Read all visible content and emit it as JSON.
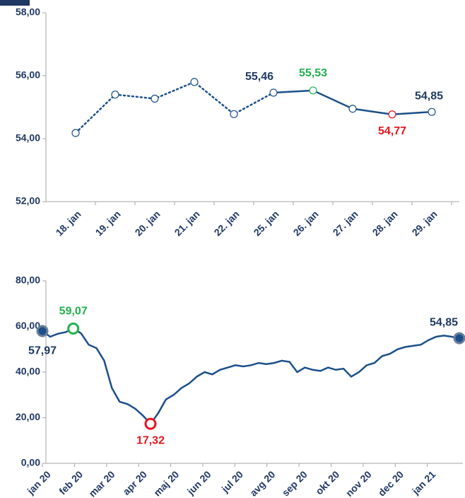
{
  "chart_data": [
    {
      "type": "line",
      "categories": [
        "18. jan",
        "19. jan",
        "20. jan",
        "21. jan",
        "22. jan",
        "25. jan",
        "26. jan",
        "27. jan",
        "28. jan",
        "29. jan"
      ],
      "values": [
        54.18,
        55.4,
        55.27,
        55.8,
        54.78,
        55.46,
        55.53,
        54.95,
        54.77,
        54.85
      ],
      "value_labels": [
        null,
        null,
        null,
        null,
        null,
        "55,46",
        "55,53",
        null,
        "54,77",
        "54,85"
      ],
      "value_label_colors": [
        null,
        null,
        null,
        null,
        null,
        "#1f3864",
        "#22b14c",
        null,
        "#e8141c",
        "#1f3864"
      ],
      "color": "#1b4f8a",
      "dotted_until_index": 5,
      "markers": "all",
      "filled_markers": false,
      "ylim": [
        52,
        58
      ],
      "yticks": [
        {
          "value": 52,
          "label": "52,00"
        },
        {
          "value": 54,
          "label": "54,00"
        },
        {
          "value": 56,
          "label": "56,00"
        },
        {
          "value": 58,
          "label": "58,00"
        }
      ]
    },
    {
      "type": "line",
      "x_labels": [
        "jan 20",
        "feb 20",
        "mar 20",
        "apr 20",
        "maj 20",
        "jun 20",
        "jul 20",
        "avg 20",
        "sep 20",
        "okt 20",
        "nov 20",
        "dec 20",
        "jan 21"
      ],
      "values": [
        57.97,
        55.5,
        56.8,
        57.5,
        59.07,
        57,
        52,
        50.5,
        45,
        33,
        27,
        26,
        24,
        21,
        17.32,
        22,
        28,
        30,
        33,
        35,
        38,
        40,
        39,
        41,
        42,
        43,
        42.5,
        43,
        44,
        43.5,
        44,
        45,
        44.5,
        40,
        42,
        41,
        40.5,
        42,
        41,
        41.5,
        38,
        40,
        43,
        44,
        47,
        48,
        50,
        51,
        51.5,
        52,
        54,
        55.5,
        56,
        55.5,
        54.85
      ],
      "value_labels": [
        "57,97",
        null,
        null,
        null,
        "59,07",
        null,
        null,
        null,
        null,
        null,
        null,
        null,
        null,
        null,
        "17,32",
        null,
        null,
        null,
        null,
        null,
        null,
        null,
        null,
        null,
        null,
        null,
        null,
        null,
        null,
        null,
        null,
        null,
        null,
        null,
        null,
        null,
        null,
        null,
        null,
        null,
        null,
        null,
        null,
        null,
        null,
        null,
        null,
        null,
        null,
        null,
        null,
        null,
        null,
        null,
        "54,85"
      ],
      "value_label_colors": [
        "#1f3864",
        null,
        null,
        null,
        "#22b14c",
        null,
        null,
        null,
        null,
        null,
        null,
        null,
        null,
        null,
        "#e8141c",
        null,
        null,
        null,
        null,
        null,
        null,
        null,
        null,
        null,
        null,
        null,
        null,
        null,
        null,
        null,
        null,
        null,
        null,
        null,
        null,
        null,
        null,
        null,
        null,
        null,
        null,
        null,
        null,
        null,
        null,
        null,
        null,
        null,
        null,
        null,
        null,
        null,
        null,
        null,
        "#1f3864"
      ],
      "color": "#1b4f8a",
      "markers": "labeled",
      "filled_markers": true,
      "ylim": [
        0,
        80
      ],
      "yticks": [
        {
          "value": 0,
          "label": "0,00"
        },
        {
          "value": 20,
          "label": "20,00"
        },
        {
          "value": 40,
          "label": "40,00"
        },
        {
          "value": 60,
          "label": "60,00"
        },
        {
          "value": 80,
          "label": "80,00"
        }
      ]
    }
  ]
}
